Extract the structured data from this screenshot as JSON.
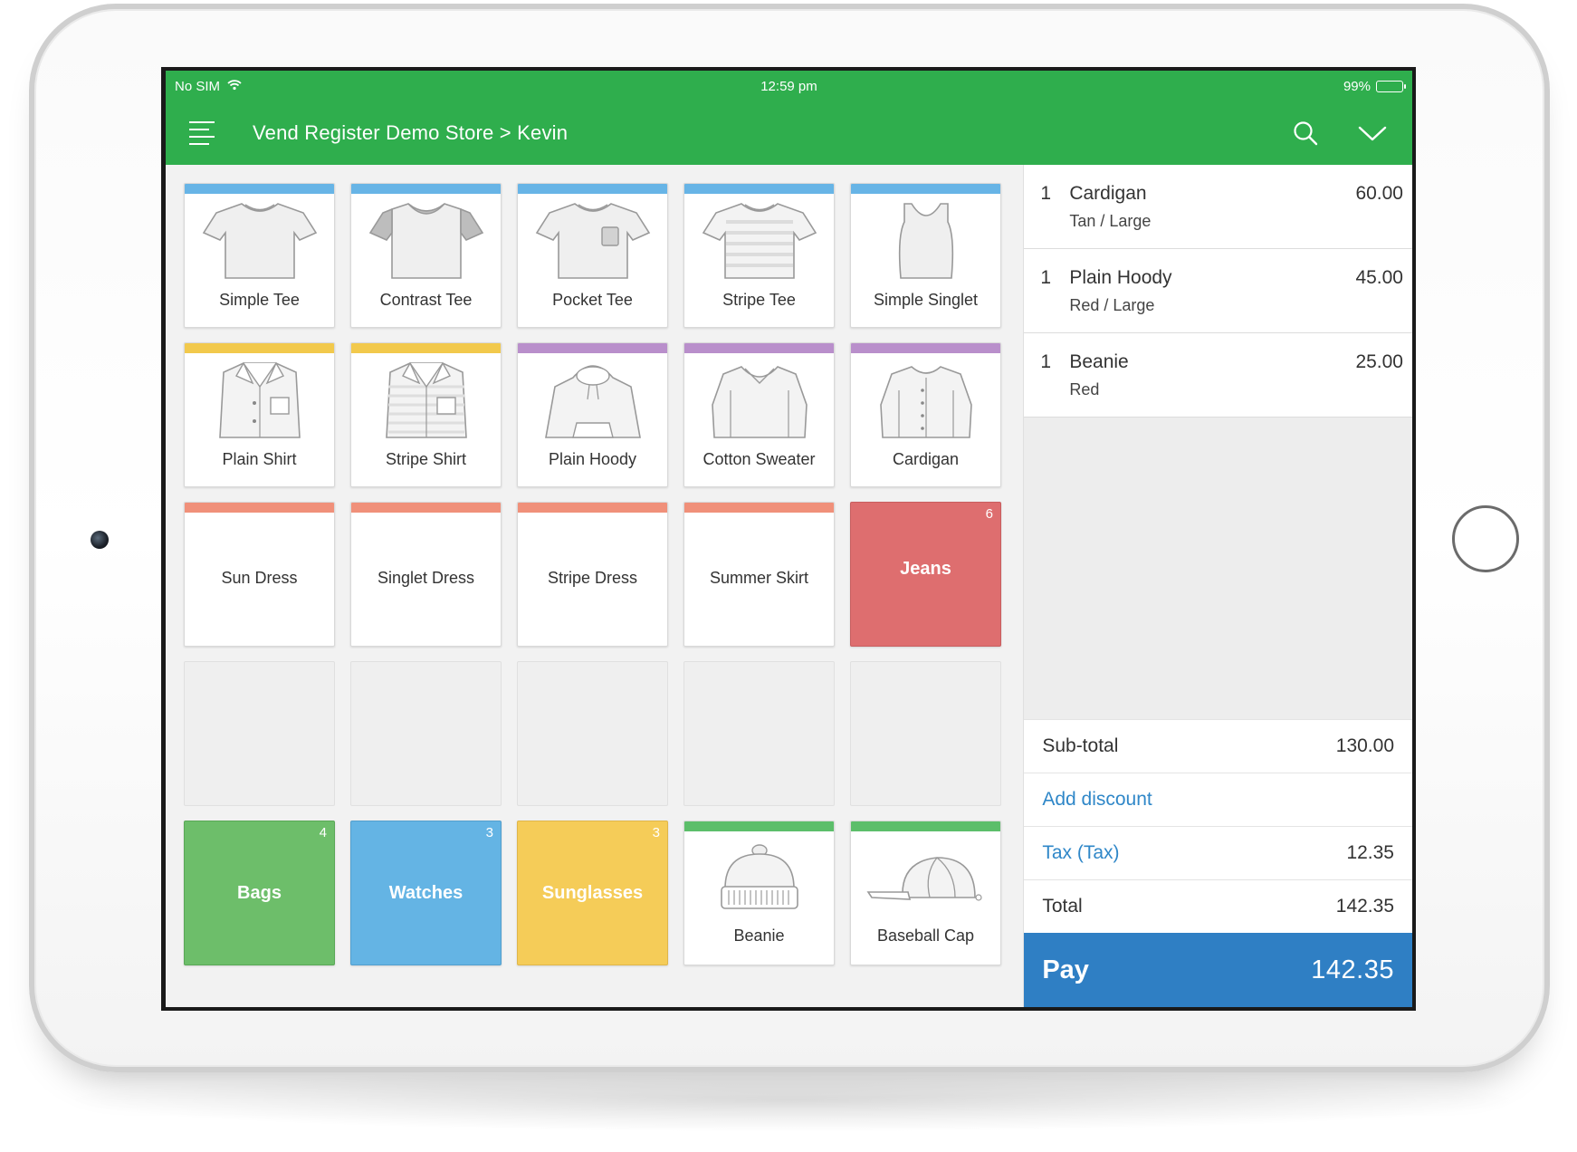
{
  "statusbar": {
    "carrier": "No SIM",
    "time": "12:59 pm",
    "battery": "99%"
  },
  "navbar": {
    "title": "Vend Register Demo Store > Kevin"
  },
  "colors": {
    "brand": "#2fae4d",
    "tops": "#67b4e6",
    "shirts": "#f2c94c",
    "knit": "#b98fcb",
    "dresses": "#f0907a",
    "accessories": "#5cbe6a",
    "jeans": "#de6e6f",
    "bags": "#6dbe6a",
    "watches": "#64b4e4",
    "sunglasses": "#f5cc58",
    "pay": "#2f7fc4"
  },
  "products": {
    "simple_tee": "Simple Tee",
    "contrast_tee": "Contrast Tee",
    "pocket_tee": "Pocket Tee",
    "stripe_tee": "Stripe Tee",
    "simple_singlet": "Simple Singlet",
    "plain_shirt": "Plain Shirt",
    "stripe_shirt": "Stripe Shirt",
    "plain_hoody": "Plain Hoody",
    "cotton_sweater": "Cotton Sweater",
    "cardigan": "Cardigan",
    "sun_dress": "Sun Dress",
    "singlet_dress": "Singlet Dress",
    "stripe_dress": "Stripe Dress",
    "summer_skirt": "Summer Skirt",
    "beanie": "Beanie",
    "baseball_cap": "Baseball Cap"
  },
  "groups": {
    "jeans": {
      "label": "Jeans",
      "count": "6"
    },
    "bags": {
      "label": "Bags",
      "count": "4"
    },
    "watches": {
      "label": "Watches",
      "count": "3"
    },
    "sunglasses": {
      "label": "Sunglasses",
      "count": "3"
    }
  },
  "sale": {
    "items": [
      {
        "qty": "1",
        "name": "Cardigan",
        "variant": "Tan / Large",
        "price": "60.00"
      },
      {
        "qty": "1",
        "name": "Plain Hoody",
        "variant": "Red / Large",
        "price": "45.00"
      },
      {
        "qty": "1",
        "name": "Beanie",
        "variant": "Red",
        "price": "25.00"
      }
    ],
    "subtotal_label": "Sub-total",
    "subtotal": "130.00",
    "discount_label": "Add discount",
    "tax_label": "Tax (Tax)",
    "tax": "12.35",
    "total_label": "Total",
    "total": "142.35",
    "pay_label": "Pay",
    "pay_amount": "142.35"
  }
}
